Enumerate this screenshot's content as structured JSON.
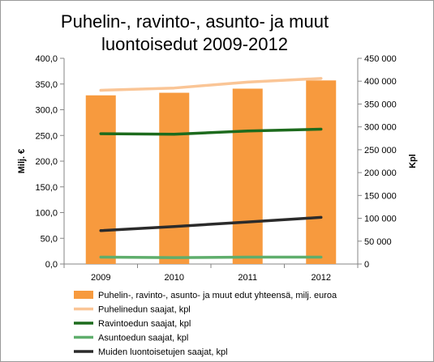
{
  "chart_data": {
    "type": "bar",
    "title_lines": [
      "Puhelin-, ravinto-, asunto- ja muut",
      "luontoisedut 2009-2012"
    ],
    "categories": [
      "2009",
      "2010",
      "2011",
      "2012"
    ],
    "y_left": {
      "label": "Milj. €",
      "range": [
        0,
        400
      ],
      "ticks": [
        "0,0",
        "50,0",
        "100,0",
        "150,0",
        "200,0",
        "250,0",
        "300,0",
        "350,0",
        "400,0"
      ]
    },
    "y_right": {
      "label": "Kpl",
      "range": [
        0,
        450000
      ],
      "ticks": [
        "0",
        "50 000",
        "100 000",
        "150 000",
        "200 000",
        "250 000",
        "300 000",
        "350 000",
        "400 000",
        "450 000"
      ]
    },
    "bar_series": {
      "name": "Puhelin-, ravinto-, asunto- ja muut edut yhteensä, milj. euroa",
      "axis": "left",
      "color": "#F79A3E",
      "values": [
        328,
        333,
        341,
        357
      ]
    },
    "line_series": [
      {
        "name": "Puhelinedun saajat, kpl",
        "axis": "right",
        "color": "#FAC596",
        "values": [
          380000,
          385000,
          398000,
          406000
        ]
      },
      {
        "name": "Ravintoedun saajat, kpl",
        "axis": "right",
        "color": "#1D6B1D",
        "values": [
          285000,
          284000,
          291000,
          295000
        ]
      },
      {
        "name": "Asuntoedun saajat, kpl",
        "axis": "right",
        "color": "#5FAE6C",
        "values": [
          15000,
          14000,
          15000,
          15000
        ]
      },
      {
        "name": "Muiden luontoisetujen saajat, kpl",
        "axis": "right",
        "color": "#2B2B2B",
        "values": [
          73000,
          82000,
          92000,
          102000
        ]
      }
    ],
    "grid": false,
    "legend_position": "bottom"
  }
}
